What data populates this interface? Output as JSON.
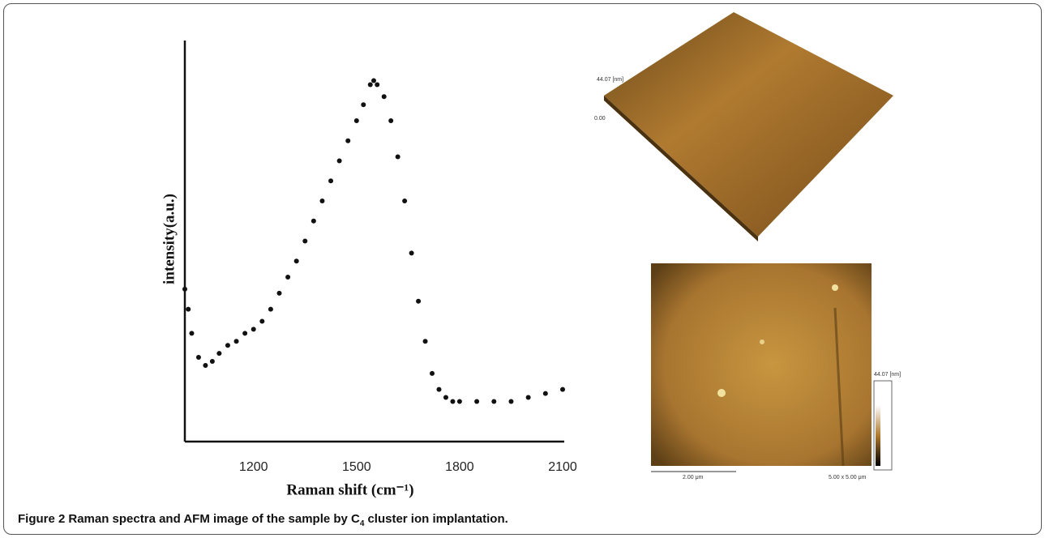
{
  "chart_data": {
    "type": "scatter",
    "xlabel": "Raman shift (cm⁻¹)",
    "ylabel": "intensity(a.u.)",
    "x": [
      1000,
      1010,
      1020,
      1040,
      1060,
      1080,
      1100,
      1125,
      1150,
      1175,
      1200,
      1225,
      1250,
      1275,
      1300,
      1325,
      1350,
      1375,
      1400,
      1425,
      1450,
      1475,
      1500,
      1520,
      1540,
      1550,
      1560,
      1580,
      1600,
      1620,
      1640,
      1660,
      1680,
      1700,
      1720,
      1740,
      1760,
      1780,
      1800,
      1850,
      1900,
      1950,
      2000,
      2050,
      2100
    ],
    "values": [
      38,
      33,
      27,
      21,
      19,
      20,
      22,
      24,
      25,
      27,
      28,
      30,
      33,
      37,
      41,
      45,
      50,
      55,
      60,
      65,
      70,
      75,
      80,
      84,
      89,
      90,
      89,
      86,
      80,
      71,
      60,
      47,
      35,
      25,
      17,
      13,
      11,
      10,
      10,
      10,
      10,
      10,
      11,
      12,
      13
    ],
    "color": "#111111",
    "xlim": [
      1000,
      2100
    ],
    "xticks": [
      1200,
      1500,
      1800,
      2100
    ],
    "ylim": [
      0,
      100
    ],
    "grid": false
  },
  "afm": {
    "height_label": "44.07 [nm]",
    "zero_label": "0.00",
    "scale_bar": "2.00 μm",
    "scan_size": "5.00 x 5.00 μm"
  },
  "caption": {
    "label": "Figure 2",
    "text": "Raman spectra and AFM image of the sample by C",
    "subscript": "4",
    "text_after": "cluster ion implantation."
  }
}
